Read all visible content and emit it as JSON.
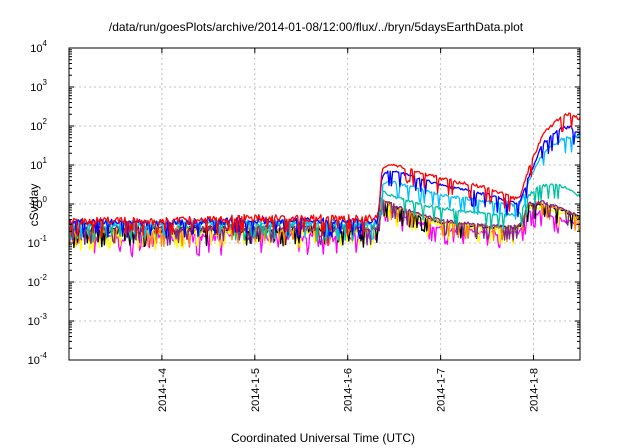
{
  "chart_data": {
    "type": "line",
    "title": "/data/run/goesPlots/archive/2014-01-08/12:00/flux/../bryn/5daysEarthData.plot",
    "xlabel": "Coordinated Universal Time (UTC)",
    "ylabel": "cSv/day",
    "yscale": "log",
    "ylim": [
      0.0001,
      10000
    ],
    "xlim": [
      0.0,
      5.5
    ],
    "x_unit": "days since 2014-01-03 00:00 UTC",
    "grid": true,
    "xticks": [
      {
        "value": 1,
        "label": "2014-1-4"
      },
      {
        "value": 2,
        "label": "2014-1-5"
      },
      {
        "value": 3,
        "label": "2014-1-6"
      },
      {
        "value": 4,
        "label": "2014-1-7"
      },
      {
        "value": 5,
        "label": "2014-1-8"
      }
    ],
    "yticks": [
      {
        "value": 0.0001,
        "base": "10",
        "exp": "-4"
      },
      {
        "value": 0.001,
        "base": "10",
        "exp": "-3"
      },
      {
        "value": 0.01,
        "base": "10",
        "exp": "-2"
      },
      {
        "value": 0.1,
        "base": "10",
        "exp": "-1"
      },
      {
        "value": 1,
        "base": "10",
        "exp": "0"
      },
      {
        "value": 10,
        "base": "10",
        "exp": "1"
      },
      {
        "value": 100,
        "base": "10",
        "exp": "2"
      },
      {
        "value": 1000,
        "base": "10",
        "exp": "3"
      },
      {
        "value": 10000,
        "base": "10",
        "exp": "4"
      }
    ],
    "series": [
      {
        "color": "#ff00ff",
        "noise": 0.5,
        "values": [
          [
            0,
            0.13
          ],
          [
            1,
            0.13
          ],
          [
            2,
            0.15
          ],
          [
            3,
            0.14
          ],
          [
            3.32,
            0.14
          ],
          [
            3.37,
            0.85
          ],
          [
            3.5,
            0.55
          ],
          [
            3.8,
            0.3
          ],
          [
            4,
            0.22
          ],
          [
            4.5,
            0.18
          ],
          [
            4.82,
            0.17
          ],
          [
            4.86,
            0.2
          ],
          [
            4.95,
            0.55
          ],
          [
            5.1,
            0.6
          ],
          [
            5.3,
            0.4
          ],
          [
            5.5,
            0.27
          ]
        ]
      },
      {
        "color": "#ffff00",
        "noise": 0.35,
        "values": [
          [
            0,
            0.17
          ],
          [
            1,
            0.17
          ],
          [
            2,
            0.19
          ],
          [
            3,
            0.18
          ],
          [
            3.32,
            0.18
          ],
          [
            3.37,
            1.05
          ],
          [
            3.5,
            0.7
          ],
          [
            3.8,
            0.38
          ],
          [
            4,
            0.28
          ],
          [
            4.5,
            0.22
          ],
          [
            4.82,
            0.21
          ],
          [
            4.86,
            0.25
          ],
          [
            4.95,
            0.75
          ],
          [
            5.1,
            0.8
          ],
          [
            5.3,
            0.55
          ],
          [
            5.5,
            0.34
          ]
        ]
      },
      {
        "color": "#000000",
        "noise": 0.35,
        "values": [
          [
            0,
            0.2
          ],
          [
            1,
            0.2
          ],
          [
            2,
            0.22
          ],
          [
            3,
            0.21
          ],
          [
            3.32,
            0.21
          ],
          [
            3.37,
            1.2
          ],
          [
            3.5,
            0.8
          ],
          [
            3.8,
            0.45
          ],
          [
            4,
            0.33
          ],
          [
            4.5,
            0.25
          ],
          [
            4.82,
            0.24
          ],
          [
            4.86,
            0.28
          ],
          [
            4.95,
            0.9
          ],
          [
            5.1,
            1.0
          ],
          [
            5.3,
            0.7
          ],
          [
            5.5,
            0.42
          ]
        ]
      },
      {
        "color": "#ff8c00",
        "noise": 0.3,
        "values": [
          [
            0,
            0.21
          ],
          [
            1,
            0.21
          ],
          [
            2,
            0.23
          ],
          [
            3,
            0.22
          ],
          [
            3.32,
            0.22
          ],
          [
            3.37,
            1.25
          ],
          [
            3.5,
            0.85
          ],
          [
            3.8,
            0.47
          ],
          [
            4,
            0.35
          ],
          [
            4.5,
            0.26
          ],
          [
            4.82,
            0.25
          ],
          [
            4.86,
            0.3
          ],
          [
            4.95,
            0.95
          ],
          [
            5.1,
            1.05
          ],
          [
            5.3,
            0.72
          ],
          [
            5.5,
            0.44
          ]
        ]
      },
      {
        "color": "#7a2a8a",
        "noise": 0.3,
        "values": [
          [
            0,
            0.22
          ],
          [
            1,
            0.22
          ],
          [
            2,
            0.24
          ],
          [
            3,
            0.23
          ],
          [
            3.32,
            0.23
          ],
          [
            3.37,
            1.3
          ],
          [
            3.5,
            0.9
          ],
          [
            3.8,
            0.5
          ],
          [
            4,
            0.37
          ],
          [
            4.5,
            0.28
          ],
          [
            4.82,
            0.27
          ],
          [
            4.86,
            0.32
          ],
          [
            4.95,
            1.0
          ],
          [
            5.1,
            1.1
          ],
          [
            5.3,
            0.75
          ],
          [
            5.5,
            0.46
          ]
        ]
      },
      {
        "color": "#00c0a0",
        "noise": 0.3,
        "values": [
          [
            0,
            0.27
          ],
          [
            1,
            0.27
          ],
          [
            2,
            0.3
          ],
          [
            3,
            0.28
          ],
          [
            3.32,
            0.28
          ],
          [
            3.37,
            2.0
          ],
          [
            3.5,
            1.5
          ],
          [
            3.8,
            0.95
          ],
          [
            4,
            0.75
          ],
          [
            4.5,
            0.55
          ],
          [
            4.82,
            0.5
          ],
          [
            4.86,
            0.6
          ],
          [
            4.95,
            1.6
          ],
          [
            5.05,
            2.8
          ],
          [
            5.2,
            3.1
          ],
          [
            5.35,
            2.6
          ],
          [
            5.5,
            1.5
          ]
        ]
      },
      {
        "color": "#00bfff",
        "noise": 0.3,
        "values": [
          [
            0,
            0.3
          ],
          [
            1,
            0.3
          ],
          [
            2,
            0.33
          ],
          [
            3,
            0.32
          ],
          [
            3.32,
            0.32
          ],
          [
            3.37,
            3.2
          ],
          [
            3.5,
            3.5
          ],
          [
            3.8,
            2.3
          ],
          [
            4,
            1.7
          ],
          [
            4.5,
            1.1
          ],
          [
            4.82,
            0.9
          ],
          [
            4.86,
            1.0
          ],
          [
            4.95,
            4.0
          ],
          [
            5.1,
            20
          ],
          [
            5.3,
            45
          ],
          [
            5.5,
            55
          ]
        ]
      },
      {
        "color": "#0000ff",
        "noise": 0.3,
        "values": [
          [
            0,
            0.32
          ],
          [
            1,
            0.32
          ],
          [
            2,
            0.36
          ],
          [
            3,
            0.34
          ],
          [
            3.32,
            0.34
          ],
          [
            3.37,
            5.0
          ],
          [
            3.45,
            7.0
          ],
          [
            3.6,
            5.8
          ],
          [
            3.8,
            4.2
          ],
          [
            4,
            3.0
          ],
          [
            4.5,
            1.7
          ],
          [
            4.82,
            1.0
          ],
          [
            4.86,
            1.2
          ],
          [
            4.95,
            5.0
          ],
          [
            5.1,
            35
          ],
          [
            5.3,
            85
          ],
          [
            5.4,
            90
          ],
          [
            5.5,
            60
          ]
        ]
      },
      {
        "color": "#ff0000",
        "noise": 0.35,
        "values": [
          [
            0,
            0.35
          ],
          [
            1,
            0.35
          ],
          [
            2,
            0.42
          ],
          [
            3,
            0.4
          ],
          [
            3.32,
            0.4
          ],
          [
            3.37,
            7.0
          ],
          [
            3.45,
            10.0
          ],
          [
            3.6,
            8.5
          ],
          [
            3.8,
            6.0
          ],
          [
            4,
            4.4
          ],
          [
            4.5,
            2.5
          ],
          [
            4.82,
            1.3
          ],
          [
            4.86,
            1.6
          ],
          [
            4.95,
            8.0
          ],
          [
            5.1,
            60
          ],
          [
            5.3,
            170
          ],
          [
            5.4,
            200
          ],
          [
            5.5,
            150
          ]
        ]
      }
    ]
  }
}
